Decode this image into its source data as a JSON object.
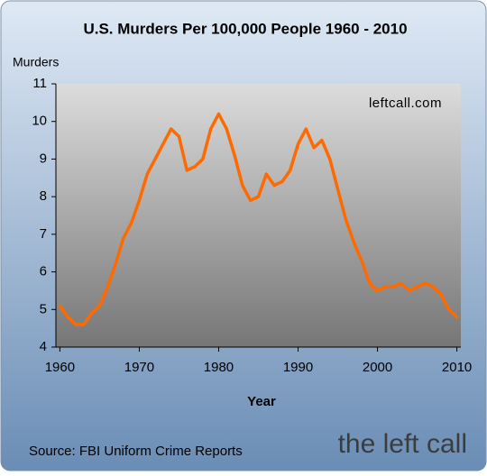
{
  "chart_data": {
    "type": "line",
    "title": "U.S. Murders Per 100,000 People 1960 - 2010",
    "y_label": "Murders",
    "x_label": "Year",
    "annotation": "leftcall.com",
    "source": "Source: FBI Uniform Crime Reports",
    "watermark": "the left call",
    "x": [
      1960,
      1961,
      1962,
      1963,
      1964,
      1965,
      1966,
      1967,
      1968,
      1969,
      1970,
      1971,
      1972,
      1973,
      1974,
      1975,
      1976,
      1977,
      1978,
      1979,
      1980,
      1981,
      1982,
      1983,
      1984,
      1985,
      1986,
      1987,
      1988,
      1989,
      1990,
      1991,
      1992,
      1993,
      1994,
      1995,
      1996,
      1997,
      1998,
      1999,
      2000,
      2001,
      2002,
      2003,
      2004,
      2005,
      2006,
      2007,
      2008,
      2009,
      2010
    ],
    "series": [
      {
        "name": "Murders",
        "color": "#ff6a00",
        "values": [
          5.1,
          4.8,
          4.6,
          4.6,
          4.9,
          5.1,
          5.6,
          6.2,
          6.9,
          7.3,
          7.9,
          8.6,
          9.0,
          9.4,
          9.8,
          9.6,
          8.7,
          8.8,
          9.0,
          9.8,
          10.2,
          9.8,
          9.1,
          8.3,
          7.9,
          8.0,
          8.6,
          8.3,
          8.4,
          8.7,
          9.4,
          9.8,
          9.3,
          9.5,
          9.0,
          8.2,
          7.4,
          6.8,
          6.3,
          5.7,
          5.5,
          5.6,
          5.6,
          5.7,
          5.5,
          5.6,
          5.7,
          5.6,
          5.4,
          5.0,
          4.8
        ]
      }
    ],
    "xlim": [
      1959.5,
      2010.5
    ],
    "xticks": [
      1960,
      1970,
      1980,
      1990,
      2000,
      2010
    ],
    "ylim": [
      4,
      11
    ],
    "yticks": [
      4,
      5,
      6,
      7,
      8,
      9,
      10,
      11
    ],
    "grid": false
  }
}
